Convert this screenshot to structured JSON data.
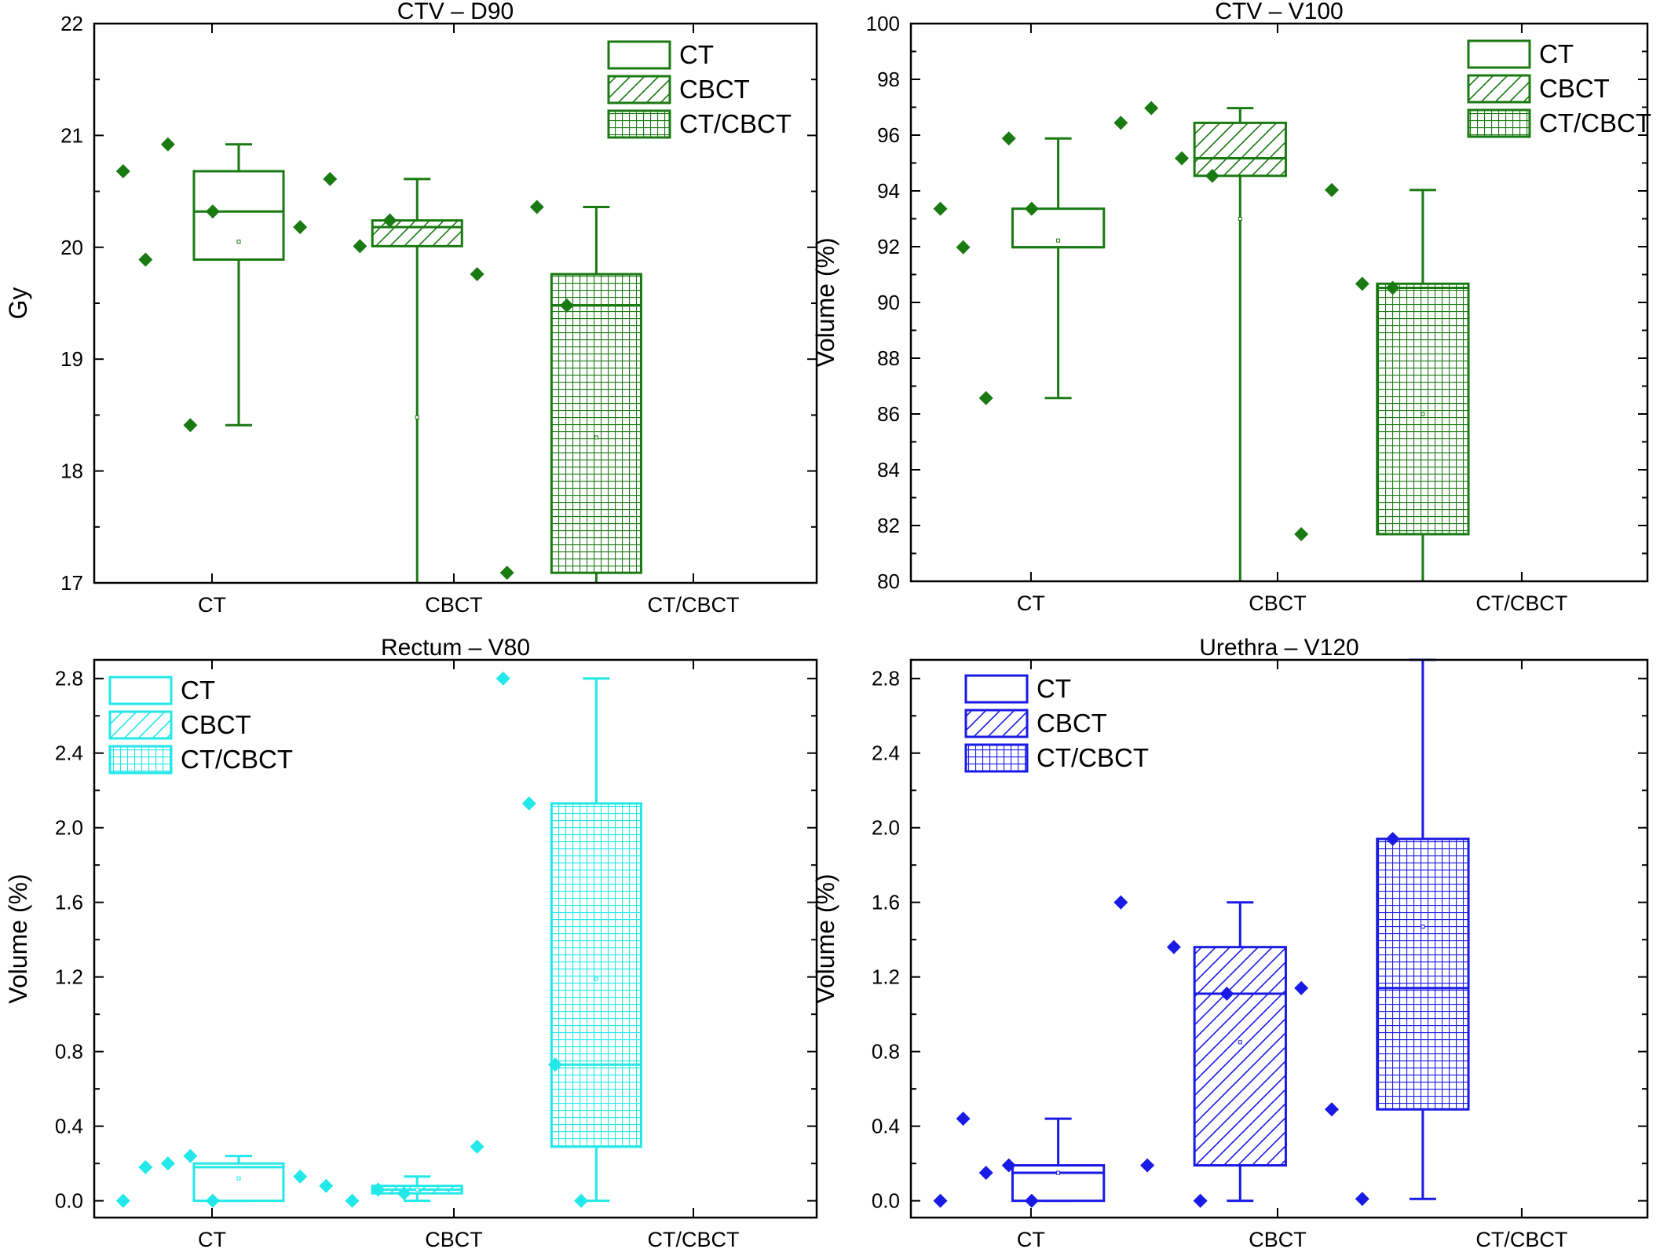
{
  "chart_data": [
    {
      "type": "box",
      "title": "CTV – D90",
      "ylabel": "Gy",
      "color": "#1a7a12",
      "ylim": [
        17,
        22
      ],
      "yticks": [
        17,
        18,
        19,
        20,
        21,
        22
      ],
      "ytick_labels": [
        "17",
        "18",
        "19",
        "20",
        "21",
        "22"
      ],
      "minor_ticks": true,
      "categories": [
        "CT",
        "CBCT",
        "CT/CBCT"
      ],
      "legend": {
        "position": "top-right",
        "entries": [
          "CT",
          "CBCT",
          "CT/CBCT"
        ]
      },
      "series": [
        {
          "category": "CT",
          "pattern": "none",
          "whisker_low": 18.41,
          "q1": 19.89,
          "median": 20.32,
          "q3": 20.68,
          "whisker_high": 20.92,
          "mean": 20.05,
          "points": [
            20.68,
            19.89,
            20.92,
            18.41,
            20.32
          ]
        },
        {
          "category": "CBCT",
          "pattern": "diagonal",
          "whisker_low": 17.0,
          "q1": 20.01,
          "median": 20.18,
          "q3": 20.24,
          "whisker_high": 20.61,
          "mean": 18.48,
          "points": [
            20.18,
            20.61,
            20.01,
            20.24
          ]
        },
        {
          "category": "CT/CBCT",
          "pattern": "grid",
          "whisker_low": 17.0,
          "q1": 17.09,
          "median": 19.48,
          "q3": 19.76,
          "whisker_high": 20.36,
          "mean": 18.3,
          "points": [
            19.76,
            17.09,
            20.36,
            19.48
          ]
        }
      ]
    },
    {
      "type": "box",
      "title": "CTV – V100",
      "ylabel": "Volume (%)",
      "color": "#1a7a12",
      "ylim": [
        80,
        100
      ],
      "yticks": [
        80,
        82,
        84,
        86,
        88,
        90,
        92,
        94,
        96,
        98,
        100
      ],
      "ytick_labels": [
        "80",
        "82",
        "84",
        "86",
        "88",
        "90",
        "92",
        "94",
        "96",
        "98",
        "100"
      ],
      "minor_ticks": true,
      "categories": [
        "CT",
        "CBCT",
        "CT/CBCT"
      ],
      "legend": {
        "position": "top-right",
        "entries": [
          "CT",
          "CBCT",
          "CT/CBCT"
        ]
      },
      "series": [
        {
          "category": "CT",
          "pattern": "none",
          "whisker_low": 86.57,
          "q1": 91.98,
          "median": 91.98,
          "q3": 93.36,
          "whisker_high": 95.88,
          "mean": 92.22,
          "points": [
            93.36,
            91.98,
            86.57,
            95.88,
            93.36
          ]
        },
        {
          "category": "CBCT",
          "pattern": "diagonal",
          "whisker_low": 80.0,
          "q1": 94.54,
          "median": 95.17,
          "q3": 96.44,
          "whisker_high": 96.97,
          "mean": 93.0,
          "points": [
            96.44,
            96.97,
            95.17,
            94.54
          ]
        },
        {
          "category": "CT/CBCT",
          "pattern": "grid",
          "whisker_low": 80.0,
          "q1": 81.69,
          "median": 90.52,
          "q3": 90.67,
          "whisker_high": 94.03,
          "mean": 86.0,
          "points": [
            81.69,
            94.03,
            90.67,
            90.52
          ]
        }
      ]
    },
    {
      "type": "box",
      "title": "Rectum – V80",
      "ylabel": "Volume (%)",
      "color": "#22e8ea",
      "ylim": [
        -0.09,
        2.9
      ],
      "yticks": [
        0,
        0.4,
        0.8,
        1.2,
        1.6,
        2.0,
        2.4,
        2.8
      ],
      "ytick_labels": [
        "0.0",
        "0.4",
        "0.8",
        "1.2",
        "1.6",
        "2.0",
        "2.4",
        "2.8"
      ],
      "minor_ticks": true,
      "categories": [
        "CT",
        "CBCT",
        "CT/CBCT"
      ],
      "legend": {
        "position": "top-left",
        "entries": [
          "CT",
          "CBCT",
          "CT/CBCT"
        ]
      },
      "series": [
        {
          "category": "CT",
          "pattern": "none",
          "whisker_low": 0.0,
          "q1": 0.0,
          "median": 0.18,
          "q3": 0.2,
          "whisker_high": 0.24,
          "mean": 0.12,
          "points": [
            0.0,
            0.18,
            0.2,
            0.24,
            0.0
          ]
        },
        {
          "category": "CBCT",
          "pattern": "diagonal",
          "whisker_low": 0.0,
          "q1": 0.04,
          "median": 0.06,
          "q3": 0.08,
          "whisker_high": 0.13,
          "mean": 0.06,
          "points": [
            0.13,
            0.08,
            0.0,
            0.06,
            0.04
          ]
        },
        {
          "category": "CT/CBCT",
          "pattern": "grid",
          "whisker_low": 0.0,
          "q1": 0.29,
          "median": 0.73,
          "q3": 2.13,
          "whisker_high": 2.8,
          "mean": 1.19,
          "points": [
            0.29,
            2.8,
            2.13,
            0.73,
            0.0
          ]
        }
      ]
    },
    {
      "type": "box",
      "title": "Urethra – V120",
      "ylabel": "Volume (%)",
      "color": "#1a1ae6",
      "ylim": [
        -0.09,
        2.9
      ],
      "yticks": [
        0,
        0.4,
        0.8,
        1.2,
        1.6,
        2.0,
        2.4,
        2.8
      ],
      "ytick_labels": [
        "0.0",
        "0.4",
        "0.8",
        "1.2",
        "1.6",
        "2.0",
        "2.4",
        "2.8"
      ],
      "minor_ticks": true,
      "categories": [
        "CT",
        "CBCT",
        "CT/CBCT"
      ],
      "legend": {
        "position": "top-left",
        "entries": [
          "CT",
          "CBCT",
          "CT/CBCT"
        ]
      },
      "series": [
        {
          "category": "CT",
          "pattern": "none",
          "whisker_low": 0.0,
          "q1": 0.0,
          "median": 0.15,
          "q3": 0.19,
          "whisker_high": 0.44,
          "mean": 0.15,
          "points": [
            0.0,
            0.44,
            0.15,
            0.19,
            0.0
          ]
        },
        {
          "category": "CBCT",
          "pattern": "diagonal",
          "whisker_low": 0.0,
          "q1": 0.19,
          "median": 1.11,
          "q3": 1.36,
          "whisker_high": 1.6,
          "mean": 0.85,
          "points": [
            1.6,
            0.19,
            1.36,
            0.0,
            1.11
          ]
        },
        {
          "category": "CT/CBCT",
          "pattern": "grid",
          "whisker_low": 0.01,
          "q1": 0.49,
          "median": 1.14,
          "q3": 1.94,
          "whisker_high": 2.9,
          "mean": 1.47,
          "points": [
            1.14,
            0.49,
            0.01,
            1.94
          ]
        }
      ]
    }
  ]
}
